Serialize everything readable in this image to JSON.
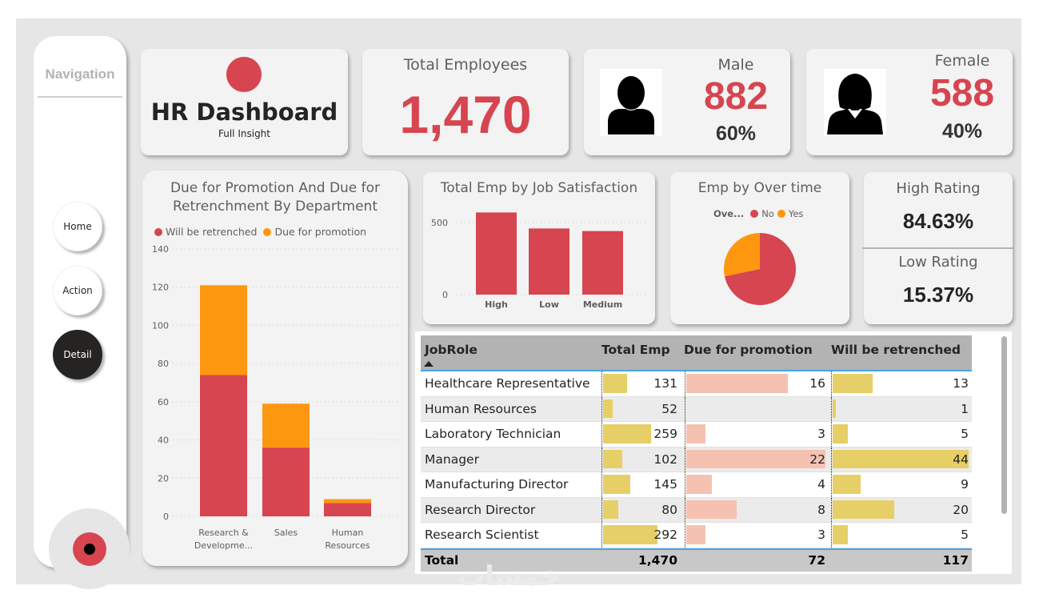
{
  "navigation": {
    "title": "Navigation",
    "buttons": [
      {
        "label": "Home",
        "active": false
      },
      {
        "label": "Action",
        "active": false
      },
      {
        "label": "Detail",
        "active": true
      }
    ]
  },
  "header": {
    "title": "HR Dashboard",
    "subtitle": "Full Insight"
  },
  "kpis": {
    "total": {
      "label": "Total Employees",
      "value": "1,470"
    },
    "male": {
      "label": "Male",
      "value": "882",
      "percent": "60%",
      "icon": "male-user-icon"
    },
    "female": {
      "label": "Female",
      "value": "588",
      "percent": "40%",
      "icon": "female-user-icon"
    },
    "high_rating": {
      "label": "High Rating",
      "value": "84.63%"
    },
    "low_rating": {
      "label": "Low Rating",
      "value": "15.37%"
    }
  },
  "colors": {
    "accent_red": "#d64550",
    "accent_orange": "#fe9710",
    "bar_yellow": "#e6cf66",
    "bar_salmon": "#f5c2b2"
  },
  "chart_data": [
    {
      "type": "bar",
      "stacked": true,
      "title": "Due for Promotion And Due for Retrenchment By Department",
      "categories": [
        "Research & Developme...",
        "Sales",
        "Human Resources"
      ],
      "series": [
        {
          "name": "Will be retrenched",
          "color": "#d64550",
          "values": [
            74,
            36,
            7
          ]
        },
        {
          "name": "Due for promotion",
          "color": "#fe9710",
          "values": [
            47,
            23,
            2
          ]
        }
      ],
      "xlabel": "",
      "ylabel": "",
      "yticks": [
        0,
        20,
        40,
        60,
        80,
        100,
        120,
        140
      ],
      "ylim": [
        0,
        140
      ],
      "grid": true,
      "legend": "top-left"
    },
    {
      "type": "bar",
      "title": "Total Emp by Job Satisfaction",
      "categories": [
        "High",
        "Low",
        "Medium"
      ],
      "values": [
        570,
        459,
        441
      ],
      "color": "#d64550",
      "yticks": [
        0,
        500
      ],
      "ylim": [
        0,
        600
      ],
      "grid": true
    },
    {
      "type": "pie",
      "title": "Emp by Over time",
      "legend_title": "Ove...",
      "labels": [
        "No",
        "Yes"
      ],
      "values": [
        1054,
        416
      ],
      "colors": [
        "#d64550",
        "#fe9710"
      ],
      "legend": "top"
    }
  ],
  "table": {
    "columns": [
      "JobRole",
      "Total Emp",
      "Due for promotion",
      "Will be retrenched"
    ],
    "sort_column": "JobRole",
    "rows": [
      {
        "role": "Healthcare Representative",
        "total": 131,
        "promotion": 16,
        "retrenched": 13
      },
      {
        "role": "Human Resources",
        "total": 52,
        "promotion": null,
        "retrenched": 1
      },
      {
        "role": "Laboratory Technician",
        "total": 259,
        "promotion": 3,
        "retrenched": 5
      },
      {
        "role": "Manager",
        "total": 102,
        "promotion": 22,
        "retrenched": 44
      },
      {
        "role": "Manufacturing Director",
        "total": 145,
        "promotion": 4,
        "retrenched": 9
      },
      {
        "role": "Research Director",
        "total": 80,
        "promotion": 8,
        "retrenched": 20
      },
      {
        "role": "Research Scientist",
        "total": 292,
        "promotion": 3,
        "retrenched": 5
      }
    ],
    "total_row": {
      "label": "Total",
      "total": "1,470",
      "promotion": "72",
      "retrenched": "117"
    },
    "max_values": {
      "total": 400,
      "promotion": 22,
      "retrenched": 44
    }
  },
  "watermark": "خمسات"
}
